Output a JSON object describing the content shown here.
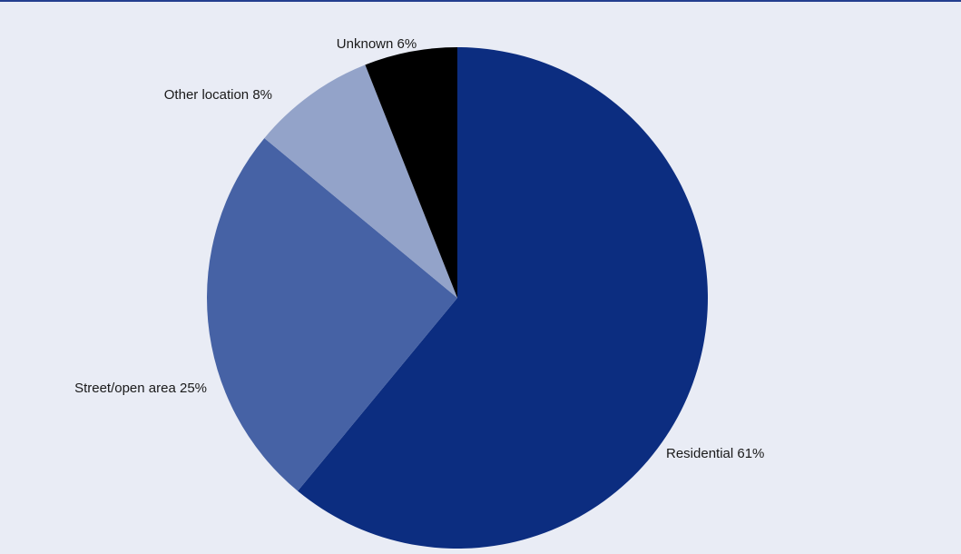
{
  "chart_data": {
    "type": "pie",
    "title": "",
    "start_angle_deg": 0,
    "direction": "clockwise",
    "labels": [
      "Residential",
      "Street/open area",
      "Other location",
      "Unknown"
    ],
    "values": [
      61,
      25,
      8,
      6
    ],
    "value_unit": "%",
    "colors": [
      "#0c2d80",
      "#4662a5",
      "#93a3c9",
      "#000000"
    ],
    "slice_labels": [
      "Residential 61%",
      "Street/open area 25%",
      "Other location 8%",
      "Unknown 6%"
    ],
    "legend": "none",
    "background": "#e9ecf5"
  }
}
